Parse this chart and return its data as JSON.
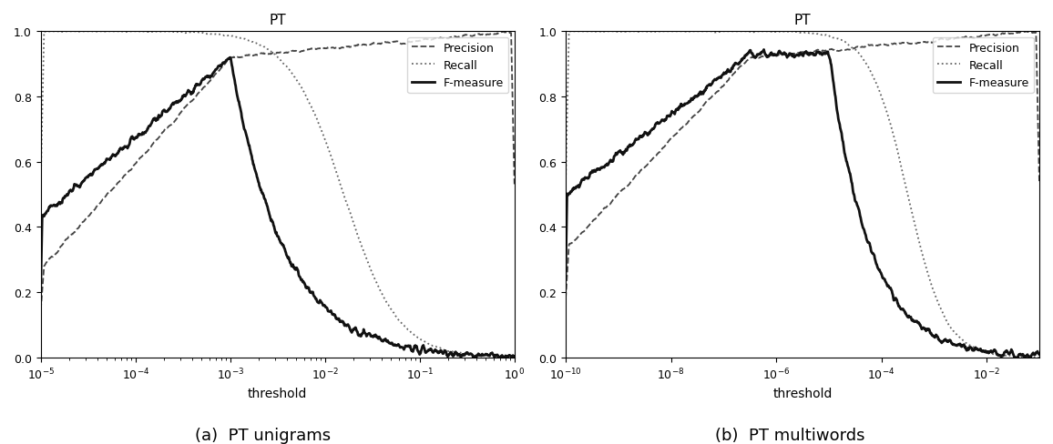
{
  "subplot_a": {
    "title": "PT",
    "xlabel": "threshold",
    "xlim_log": [
      -5,
      0
    ],
    "ylim": [
      0.0,
      1.0
    ],
    "caption": "(a)  PT unigrams"
  },
  "subplot_b": {
    "title": "PT",
    "xlabel": "threshold",
    "xlim_log": [
      -10,
      -1
    ],
    "ylim": [
      0.0,
      1.0
    ],
    "caption": "(b)  PT multiwords"
  },
  "line_styles": {
    "precision": {
      "linestyle": "--",
      "color": "#444444",
      "linewidth": 1.3
    },
    "recall": {
      "linestyle": ":",
      "color": "#666666",
      "linewidth": 1.3
    },
    "fmeasure": {
      "linestyle": "-",
      "color": "#111111",
      "linewidth": 2.0
    }
  },
  "legend_labels": [
    "Precision",
    "Recall",
    "F-measure"
  ],
  "background_color": "#ffffff"
}
